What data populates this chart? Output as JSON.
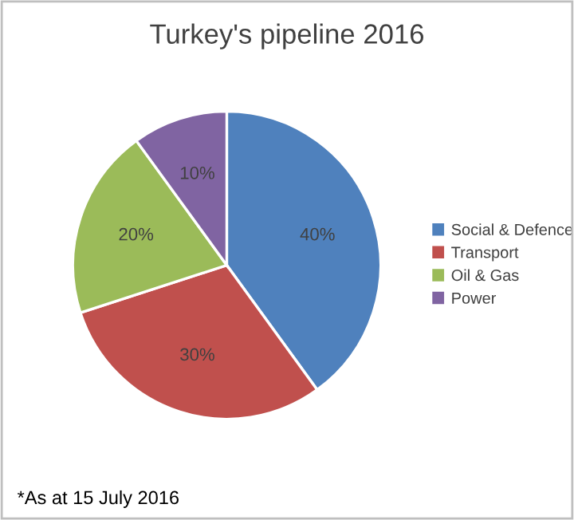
{
  "chart_data": {
    "type": "pie",
    "title": "Turkey's pipeline 2016",
    "categories": [
      "Social & Defence",
      "Transport",
      "Oil & Gas",
      "Power"
    ],
    "values": [
      40,
      30,
      20,
      10
    ],
    "colors": [
      "#4f81bd",
      "#c0504d",
      "#9bbb59",
      "#8064a2"
    ],
    "value_labels": [
      "40%",
      "30%",
      "20%",
      "10%"
    ],
    "legend": "right",
    "annotations": [
      "*As at 15 July 2016"
    ]
  }
}
